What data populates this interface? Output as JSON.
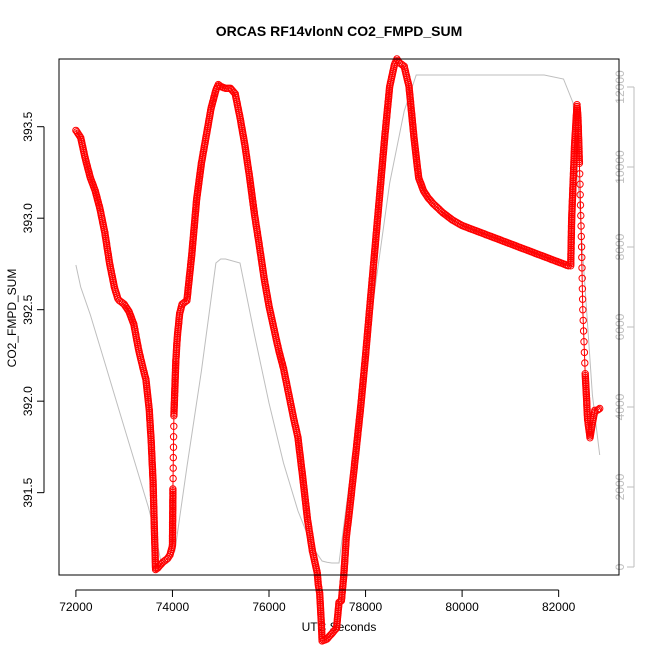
{
  "chart_data": {
    "type": "scatter",
    "title": "ORCAS RF14vlonN CO2_FMPD_SUM",
    "xlabel": "UTC Seconds",
    "ylabel": "CO2_FMPD_SUM",
    "xlim": [
      71650,
      83250
    ],
    "ylim": [
      391.05,
      393.87
    ],
    "y2lim": [
      -200,
      12700
    ],
    "x_ticks": [
      72000,
      74000,
      76000,
      78000,
      80000,
      82000
    ],
    "y_ticks": [
      391.5,
      392.0,
      392.5,
      393.0,
      393.5
    ],
    "y2_ticks": [
      0,
      2000,
      4000,
      6000,
      8000,
      10000,
      12000
    ],
    "series": [
      {
        "color": "#ff0000",
        "marker": "open-circle",
        "points": [
          [
            72000,
            393.48
          ],
          [
            72100,
            393.44
          ],
          [
            72200,
            393.32
          ],
          [
            72300,
            393.22
          ],
          [
            72400,
            393.15
          ],
          [
            72500,
            393.05
          ],
          [
            72600,
            392.92
          ],
          [
            72700,
            392.75
          ],
          [
            72800,
            392.62
          ],
          [
            72870,
            392.56
          ],
          [
            72900,
            392.55
          ],
          [
            73000,
            392.53
          ],
          [
            73100,
            392.49
          ],
          [
            73200,
            392.42
          ],
          [
            73300,
            392.28
          ],
          [
            73400,
            392.17
          ],
          [
            73450,
            392.12
          ],
          [
            73480,
            392.05
          ],
          [
            73520,
            391.95
          ],
          [
            73560,
            391.78
          ],
          [
            73600,
            391.55
          ],
          [
            73620,
            391.35
          ],
          [
            73650,
            391.08
          ],
          [
            73700,
            391.09
          ],
          [
            73800,
            391.12
          ],
          [
            73900,
            391.14
          ],
          [
            73950,
            391.16
          ],
          [
            74000,
            391.21
          ],
          [
            74010,
            391.52
          ],
          [
            74030,
            391.92
          ],
          [
            74070,
            392.22
          ],
          [
            74100,
            392.35
          ],
          [
            74150,
            392.48
          ],
          [
            74200,
            392.53
          ],
          [
            74300,
            392.55
          ],
          [
            74400,
            392.8
          ],
          [
            74500,
            393.1
          ],
          [
            74600,
            393.3
          ],
          [
            74700,
            393.45
          ],
          [
            74800,
            393.6
          ],
          [
            74900,
            393.7
          ],
          [
            74950,
            393.73
          ],
          [
            75000,
            393.72
          ],
          [
            75100,
            393.71
          ],
          [
            75200,
            393.71
          ],
          [
            75300,
            393.68
          ],
          [
            75400,
            393.55
          ],
          [
            75500,
            393.4
          ],
          [
            75600,
            393.22
          ],
          [
            75700,
            393.02
          ],
          [
            75800,
            392.85
          ],
          [
            75900,
            392.67
          ],
          [
            76000,
            392.52
          ],
          [
            76100,
            392.4
          ],
          [
            76200,
            392.28
          ],
          [
            76300,
            392.18
          ],
          [
            76400,
            392.05
          ],
          [
            76500,
            391.92
          ],
          [
            76600,
            391.8
          ],
          [
            76700,
            391.58
          ],
          [
            76800,
            391.35
          ],
          [
            76900,
            391.18
          ],
          [
            77000,
            391.06
          ],
          [
            77020,
            391.0
          ],
          [
            77050,
            390.95
          ],
          [
            77080,
            390.81
          ],
          [
            77100,
            390.69
          ],
          [
            77200,
            390.7
          ],
          [
            77300,
            390.73
          ],
          [
            77400,
            390.76
          ],
          [
            77450,
            390.9
          ],
          [
            77500,
            390.91
          ],
          [
            77550,
            391.05
          ],
          [
            77600,
            391.25
          ],
          [
            77700,
            391.48
          ],
          [
            77800,
            391.72
          ],
          [
            77900,
            391.97
          ],
          [
            78000,
            392.25
          ],
          [
            78100,
            392.55
          ],
          [
            78200,
            392.85
          ],
          [
            78300,
            393.15
          ],
          [
            78400,
            393.45
          ],
          [
            78500,
            393.72
          ],
          [
            78600,
            393.84
          ],
          [
            78650,
            393.87
          ],
          [
            78700,
            393.85
          ],
          [
            78800,
            393.83
          ],
          [
            78900,
            393.72
          ],
          [
            79000,
            393.45
          ],
          [
            79100,
            393.22
          ],
          [
            79200,
            393.15
          ],
          [
            79300,
            393.11
          ],
          [
            79400,
            393.08
          ],
          [
            79600,
            393.03
          ],
          [
            79800,
            392.99
          ],
          [
            80000,
            392.96
          ],
          [
            80200,
            392.94
          ],
          [
            80400,
            392.92
          ],
          [
            80600,
            392.9
          ],
          [
            80800,
            392.88
          ],
          [
            81000,
            392.86
          ],
          [
            81200,
            392.84
          ],
          [
            81400,
            392.82
          ],
          [
            81600,
            392.8
          ],
          [
            81800,
            392.78
          ],
          [
            82000,
            392.76
          ],
          [
            82200,
            392.74
          ],
          [
            82250,
            392.74
          ],
          [
            82270,
            393.0
          ],
          [
            82300,
            393.2
          ],
          [
            82330,
            393.4
          ],
          [
            82380,
            393.62
          ],
          [
            82400,
            393.55
          ],
          [
            82430,
            393.3
          ],
          [
            82470,
            392.9
          ],
          [
            82500,
            392.5
          ],
          [
            82550,
            392.15
          ],
          [
            82600,
            391.9
          ],
          [
            82650,
            391.8
          ],
          [
            82700,
            391.88
          ],
          [
            82750,
            391.95
          ],
          [
            82800,
            391.95
          ],
          [
            82850,
            391.96
          ]
        ]
      },
      {
        "color": "#bebebe",
        "axis": "right",
        "points": [
          [
            72000,
            7550
          ],
          [
            72100,
            7000
          ],
          [
            72300,
            6300
          ],
          [
            72600,
            5100
          ],
          [
            72900,
            3900
          ],
          [
            73200,
            2700
          ],
          [
            73500,
            1500
          ],
          [
            73650,
            800
          ],
          [
            73750,
            200
          ],
          [
            73900,
            100
          ],
          [
            74050,
            400
          ],
          [
            74300,
            2500
          ],
          [
            74600,
            4900
          ],
          [
            74900,
            7600
          ],
          [
            75000,
            7700
          ],
          [
            75100,
            7700
          ],
          [
            75400,
            7600
          ],
          [
            75700,
            5800
          ],
          [
            76000,
            4100
          ],
          [
            76300,
            2600
          ],
          [
            76600,
            1400
          ],
          [
            76900,
            500
          ],
          [
            77100,
            150
          ],
          [
            77200,
            120
          ],
          [
            77300,
            100
          ],
          [
            77450,
            100
          ],
          [
            77600,
            1500
          ],
          [
            77900,
            4200
          ],
          [
            78200,
            7000
          ],
          [
            78500,
            9600
          ],
          [
            78800,
            11400
          ],
          [
            79050,
            12300
          ],
          [
            79300,
            12300
          ],
          [
            80000,
            12300
          ],
          [
            81000,
            12300
          ],
          [
            81700,
            12300
          ],
          [
            82100,
            12200
          ],
          [
            82300,
            11600
          ],
          [
            82500,
            7800
          ],
          [
            82700,
            4300
          ],
          [
            82850,
            2800
          ]
        ]
      }
    ]
  }
}
